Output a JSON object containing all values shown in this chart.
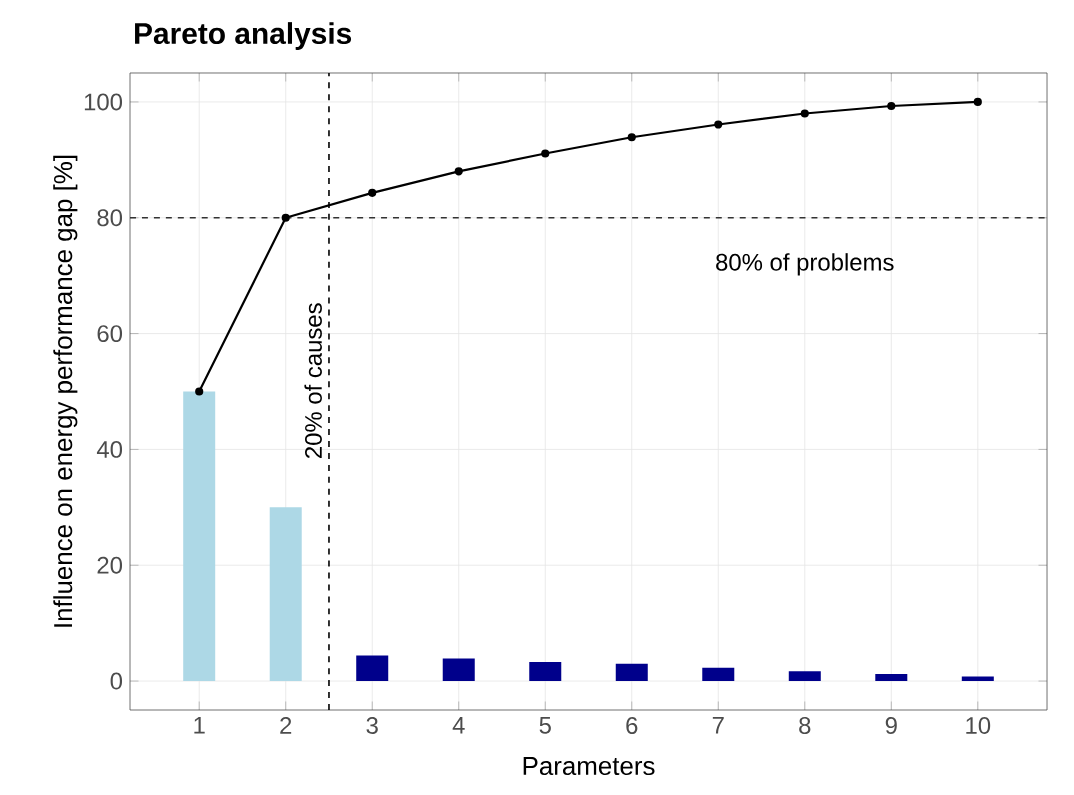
{
  "chart_data": {
    "type": "bar",
    "title": "Pareto analysis",
    "xlabel": "Parameters",
    "ylabel": "Influence on energy performance gap [%]",
    "x": [
      1,
      2,
      3,
      4,
      5,
      6,
      7,
      8,
      9,
      10
    ],
    "xlim": [
      0.2,
      10.8
    ],
    "ylim": [
      -5,
      105
    ],
    "xticks": [
      1,
      2,
      3,
      4,
      5,
      6,
      7,
      8,
      9,
      10
    ],
    "yticks": [
      0,
      20,
      40,
      60,
      80,
      100
    ],
    "grid": true,
    "series": [
      {
        "colors": [
          "#add8e6",
          "#add8e6",
          "#00008b",
          "#00008b",
          "#00008b",
          "#00008b",
          "#00008b",
          "#00008b",
          "#00008b",
          "#00008b"
        ],
        "values": [
          50,
          30,
          4.4,
          3.9,
          3.3,
          3.0,
          2.3,
          1.7,
          1.2,
          0.8
        ]
      },
      {
        "type": "line",
        "color": "#000000",
        "marker": "circle",
        "values": [
          50,
          80,
          84.3,
          88.0,
          91.1,
          93.9,
          96.1,
          98.0,
          99.3,
          100
        ]
      }
    ],
    "ref_lines": [
      {
        "axis": "y",
        "value": 80,
        "label": "80% of problems",
        "line_style": "dashed",
        "color": "#333333"
      },
      {
        "axis": "x",
        "value": 2.5,
        "label": "20% of causes",
        "line_style": "dashed",
        "color": "#000000"
      }
    ]
  }
}
